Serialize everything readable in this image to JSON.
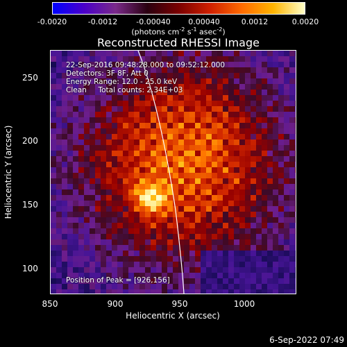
{
  "colorbar": {
    "tick_labels": [
      "-0.0020",
      "-0.0012",
      "-0.00040",
      "0.00040",
      "0.0012",
      "0.0020"
    ],
    "units_text": "(photons cm",
    "units_exp1": "-2",
    "units_mid1": " s",
    "units_exp2": "-1",
    "units_mid2": " asec",
    "units_exp3": "-2",
    "units_end": ")",
    "colors": [
      "#0000ff",
      "#4b00c8",
      "#7a2a8a",
      "#2a0010",
      "#7a0000",
      "#d02000",
      "#ff6a00",
      "#ffb400",
      "#ffffc8"
    ]
  },
  "image": {
    "title": "Reconstructed RHESSI Image",
    "time_range": "22-Sep-2016 09:48:28.000 to 09:52:12.000",
    "detectors": "Detectors: 3F 8F, Att 0",
    "energy_range": "Energy Range: 12.0 - 25.0 keV",
    "clean_line": "Clean     Total counts: 2.34E+03",
    "peak": "Position of Peak = [926,156]",
    "peak_x": 926,
    "peak_y": 156
  },
  "axes": {
    "xlabel": "Heliocentric X (arcsec)",
    "ylabel": "Heliocentric Y (arcsec)",
    "xticks": [
      850,
      900,
      950,
      1000
    ],
    "yticks": [
      100,
      150,
      200,
      250
    ],
    "xlim": [
      850,
      1040
    ],
    "ylim": [
      80,
      270
    ]
  },
  "footer": {
    "timestamp": "6-Sep-2022 07:49"
  }
}
